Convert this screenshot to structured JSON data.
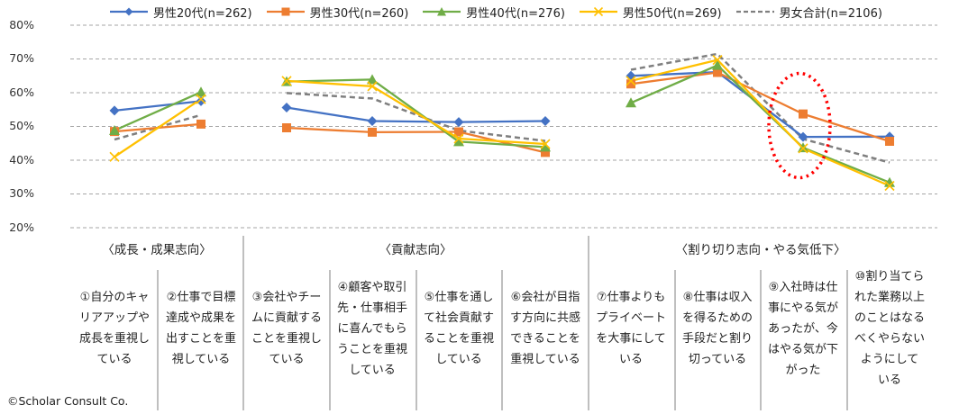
{
  "chart_data": {
    "type": "line",
    "title": "",
    "xlabel": "",
    "ylabel": "",
    "ylim": [
      0.2,
      0.8
    ],
    "y_ticks": [
      "80%",
      "70%",
      "60%",
      "50%",
      "40%",
      "30%",
      "20%"
    ],
    "y_tick_values": [
      0.8,
      0.7,
      0.6,
      0.5,
      0.4,
      0.3,
      0.2
    ],
    "grid": "horizontal dashed",
    "legend_position": "top",
    "groups": [
      {
        "label": "〈成長・成果志向〉",
        "categories": [
          0,
          1
        ]
      },
      {
        "label": "〈貢献志向〉",
        "categories": [
          2,
          3,
          4,
          5
        ]
      },
      {
        "label": "〈割り切り志向・やる気低下〉",
        "categories": [
          6,
          7,
          8,
          9
        ]
      }
    ],
    "categories": [
      [
        "①自分のキャ",
        "リアアップや",
        "成長を重視し",
        "ている"
      ],
      [
        "②仕事で目標",
        "達成や成果を",
        "出すことを重",
        "視している"
      ],
      [
        "③会社やチー",
        "ムに貢献する",
        "ことを重視し",
        "ている"
      ],
      [
        "④顧客や取引",
        "先・仕事相手",
        "に喜んでもら",
        "うことを重視",
        "している"
      ],
      [
        "⑤仕事を通し",
        "て社会貢献す",
        "ることを重視",
        "している"
      ],
      [
        "⑥会社が目指",
        "す方向に共感",
        "できることを",
        "重視している"
      ],
      [
        "⑦仕事よりも",
        "プライベート",
        "を大事にして",
        "いる"
      ],
      [
        "⑧仕事は収入",
        "を得るための",
        "手段だと割り",
        "切っている"
      ],
      [
        "⑨入社時は仕",
        "事にやる気が",
        "あったが、今",
        "はやる気が下",
        "がった"
      ],
      [
        "⑩割り当てら",
        "れた業務以上",
        "のことはなる",
        "べくやらない",
        "ようにして",
        "いる"
      ]
    ],
    "series": [
      {
        "name": "男性20代(n=262)",
        "color": "#4472C4",
        "marker": "diamond",
        "dash": false,
        "values": [
          0.547,
          0.575,
          0.556,
          0.516,
          0.513,
          0.516,
          0.65,
          0.661,
          0.469,
          0.47
        ]
      },
      {
        "name": "男性30代(n=260)",
        "color": "#ED7D31",
        "marker": "square",
        "dash": false,
        "values": [
          0.485,
          0.507,
          0.496,
          0.483,
          0.484,
          0.423,
          0.626,
          0.66,
          0.537,
          0.456
        ]
      },
      {
        "name": "男性40代(n=276)",
        "color": "#70AD47",
        "marker": "triangle",
        "dash": false,
        "values": [
          0.488,
          0.602,
          0.633,
          0.639,
          0.455,
          0.439,
          0.57,
          0.681,
          0.437,
          0.334
        ]
      },
      {
        "name": "男性50代(n=269)",
        "color": "#FFC000",
        "marker": "x",
        "dash": false,
        "values": [
          0.41,
          0.581,
          0.635,
          0.619,
          0.464,
          0.448,
          0.635,
          0.697,
          0.435,
          0.324
        ]
      },
      {
        "name": "男女合計(n=2106)",
        "color": "#7F7F7F",
        "marker": "none",
        "dash": true,
        "values": [
          0.461,
          0.534,
          0.599,
          0.583,
          0.488,
          0.457,
          0.668,
          0.715,
          0.463,
          0.393
        ]
      }
    ],
    "annotations": [
      {
        "type": "dotted-ellipse",
        "color": "#FF0000",
        "target_category": 8
      }
    ]
  },
  "copyright": "©Scholar Consult Co."
}
